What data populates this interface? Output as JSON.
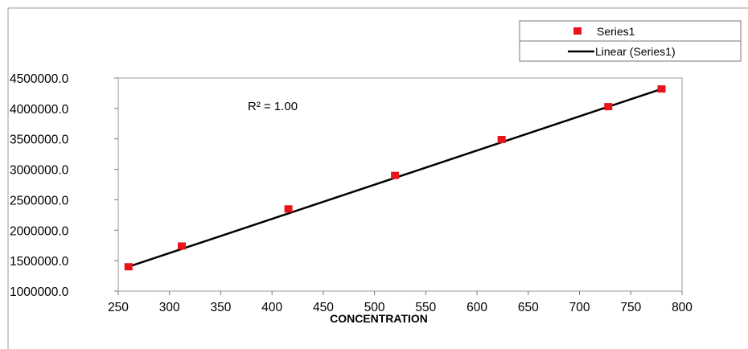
{
  "chart_data": {
    "type": "scatter",
    "title": "",
    "xlabel": "CONCENTRATION",
    "ylabel": "",
    "xlim": [
      250,
      800
    ],
    "ylim": [
      1000000,
      4500000
    ],
    "x_ticks": [
      250,
      300,
      350,
      400,
      450,
      500,
      550,
      600,
      650,
      700,
      750,
      800
    ],
    "x_tick_labels": [
      "250",
      "300",
      "350",
      "400",
      "450",
      "500",
      "550",
      "600",
      "650",
      "700",
      "750",
      "800"
    ],
    "y_ticks": [
      1000000,
      1500000,
      2000000,
      2500000,
      3000000,
      3500000,
      4000000,
      4500000
    ],
    "y_tick_labels": [
      "1000000.0",
      "1500000.0",
      "2000000.0",
      "2500000.0",
      "3000000.0",
      "3500000.0",
      "4000000.0",
      "4500000.0"
    ],
    "grid": false,
    "legend_position": "top-right",
    "series": [
      {
        "name": "Series1",
        "marker": "square",
        "color": "#e8141a",
        "x": [
          260,
          312,
          416,
          520,
          624,
          728,
          780
        ],
        "y": [
          1400000,
          1740000,
          2350000,
          2900000,
          3490000,
          4030000,
          4320000
        ]
      },
      {
        "name": "Linear (Series1)",
        "kind": "trendline",
        "color": "#000000",
        "x": [
          260,
          780
        ],
        "y": [
          1400000,
          4320000
        ]
      }
    ],
    "annotations": [
      "R² = 1.00"
    ]
  }
}
